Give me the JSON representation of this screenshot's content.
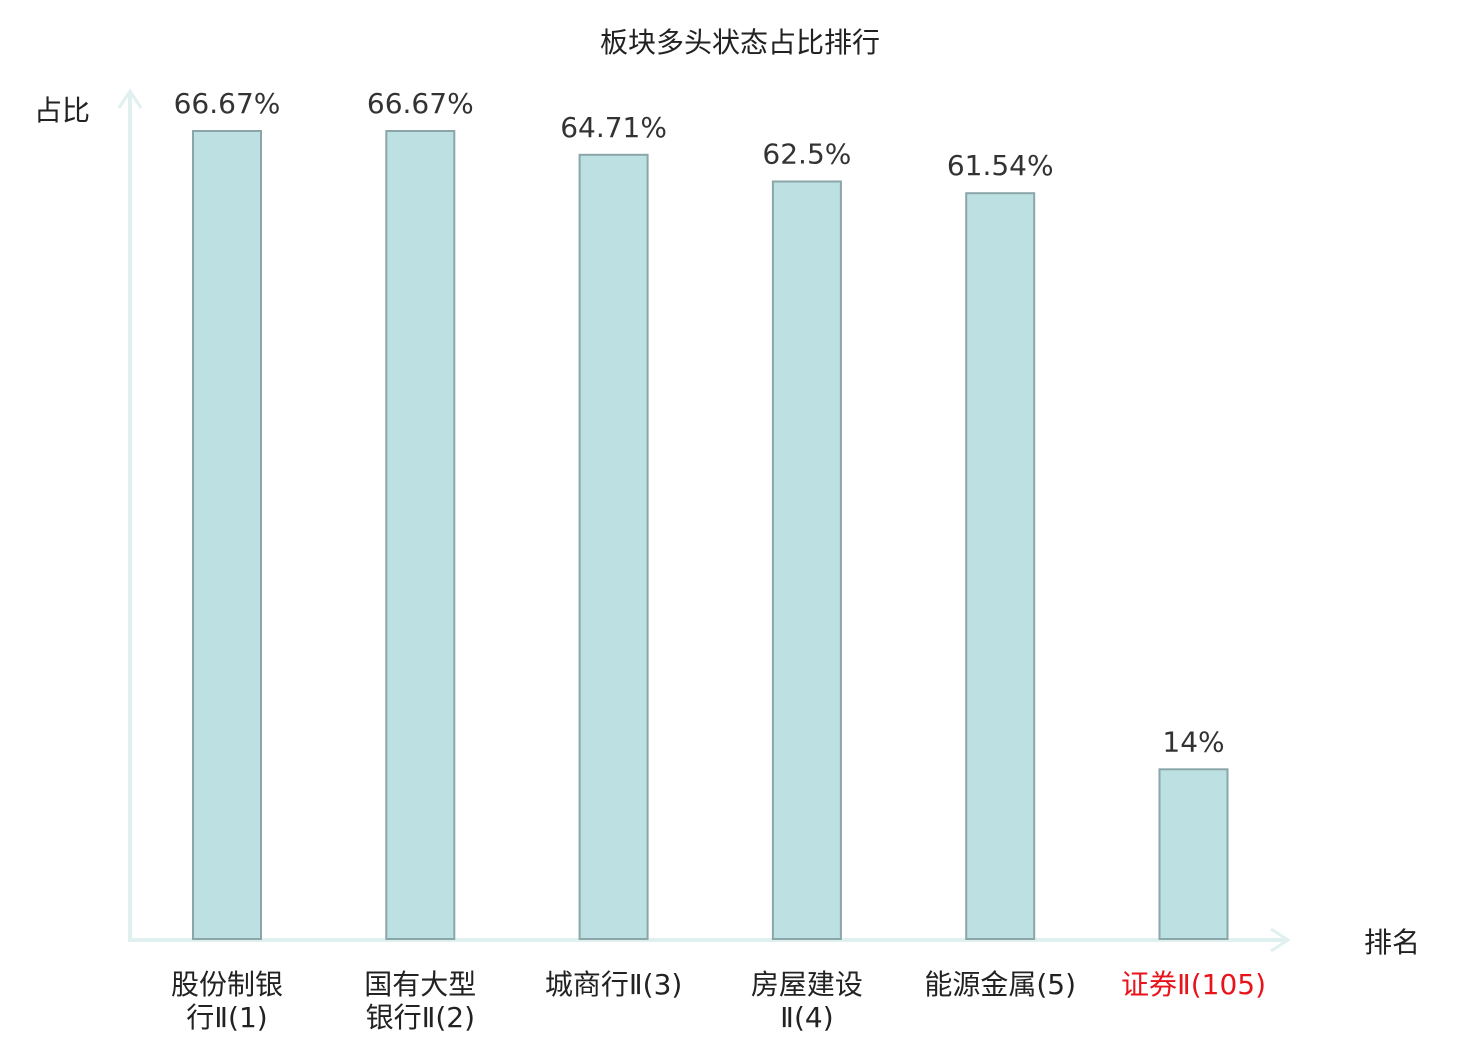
{
  "chart_data": {
    "type": "bar",
    "title": "板块多头状态占比排行",
    "ylabel": "占比",
    "xlabel": "排名",
    "categories": [
      [
        "股份制银",
        "行Ⅱ(1)"
      ],
      [
        "国有大型",
        "银行Ⅱ(2)"
      ],
      [
        "城商行Ⅱ(3)"
      ],
      [
        "房屋建设",
        "Ⅱ(4)"
      ],
      [
        "能源金属(5)"
      ],
      [
        "证券Ⅱ(105)"
      ]
    ],
    "values": [
      66.67,
      66.67,
      64.71,
      62.5,
      61.54,
      14
    ],
    "value_labels": [
      "66.67%",
      "66.67%",
      "64.71%",
      "62.5%",
      "61.54%",
      "14%"
    ],
    "highlight_index": 5,
    "ylim": [
      0,
      66.67
    ],
    "grid": false,
    "colors": {
      "bar_fill": "#bde0e3",
      "bar_stroke": "#8aa6a8",
      "axis": "#dff0ee",
      "label": "#222222",
      "highlight": "#e8141c"
    }
  }
}
